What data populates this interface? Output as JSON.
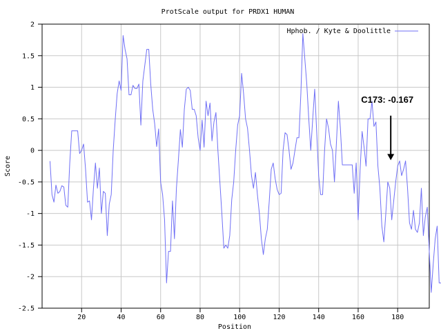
{
  "chart_data": {
    "type": "line",
    "title": "ProtScale output for PRDX1 HUMAN",
    "xlabel": "Position",
    "ylabel": "Score",
    "xlim": [
      0,
      196
    ],
    "ylim": [
      -2.5,
      2
    ],
    "xticks": [
      20,
      40,
      60,
      80,
      100,
      120,
      140,
      160,
      180
    ],
    "yticks": [
      -2.5,
      -2,
      -1.5,
      -1,
      -0.5,
      0,
      0.5,
      1,
      1.5,
      2
    ],
    "xtick_labels": [
      "20",
      "40",
      "60",
      "80",
      "100",
      "120",
      "140",
      "160",
      "180"
    ],
    "ytick_labels": [
      "-2.5",
      "-2",
      "-1.5",
      "-1",
      "-0.5",
      "0",
      "0.5",
      "1",
      "1.5",
      "2"
    ],
    "grid": true,
    "legend_position": "top-right",
    "series": [
      {
        "name": "Hphob. / Kyte & Doolittle",
        "color": "#6f6ff5",
        "x_start": 4,
        "values": [
          -0.17,
          -0.7,
          -0.82,
          -0.55,
          -0.68,
          -0.65,
          -0.56,
          -0.58,
          -0.87,
          -0.9,
          -0.2,
          0.31,
          0.31,
          0.31,
          0.31,
          -0.05,
          0.0,
          0.1,
          -0.3,
          -0.82,
          -0.8,
          -1.1,
          -0.6,
          -0.2,
          -0.6,
          -0.28,
          -1.0,
          -0.65,
          -0.68,
          -1.35,
          -0.85,
          -0.7,
          0.0,
          0.48,
          0.9,
          1.1,
          0.95,
          1.82,
          1.6,
          1.45,
          0.88,
          0.88,
          1.03,
          0.98,
          0.98,
          1.05,
          0.4,
          1.1,
          1.35,
          1.6,
          1.6,
          1.05,
          0.65,
          0.42,
          0.06,
          0.34,
          -0.5,
          -0.7,
          -1.1,
          -2.1,
          -1.6,
          -1.6,
          -0.8,
          -1.4,
          -0.6,
          -0.15,
          0.33,
          0.05,
          0.65,
          0.97,
          1.0,
          0.95,
          0.65,
          0.65,
          0.55,
          0.2,
          0.0,
          0.48,
          0.05,
          0.78,
          0.55,
          0.75,
          0.15,
          0.45,
          0.6,
          0.0,
          -0.5,
          -1.0,
          -1.55,
          -1.5,
          -1.55,
          -1.35,
          -0.78,
          -0.5,
          0.0,
          0.4,
          0.55,
          1.22,
          0.9,
          0.5,
          0.35,
          0.0,
          -0.4,
          -0.6,
          -0.35,
          -0.7,
          -1.0,
          -1.4,
          -1.65,
          -1.4,
          -1.25,
          -0.8,
          -0.3,
          -0.2,
          -0.45,
          -0.62,
          -0.7,
          -0.68,
          0.0,
          0.28,
          0.25,
          0.0,
          -0.3,
          -0.2,
          0.0,
          0.2,
          0.2,
          0.9,
          1.85,
          1.45,
          1.05,
          0.5,
          0.0,
          0.5,
          0.97,
          0.3,
          -0.4,
          -0.7,
          -0.7,
          0.0,
          0.5,
          0.35,
          0.1,
          0.0,
          -0.5,
          0.12,
          0.78,
          0.35,
          -0.23,
          -0.23,
          -0.23,
          -0.23,
          -0.23,
          -0.23,
          -0.68,
          -0.2,
          -1.1,
          -0.3,
          0.3,
          0.05,
          -0.25,
          0.5,
          0.5,
          0.78,
          0.38,
          0.45,
          -0.25,
          -0.6,
          -1.2,
          -1.45,
          -1.0,
          -0.5,
          -0.6,
          -1.1,
          -0.8,
          -0.5,
          -0.25,
          -0.167,
          -0.4,
          -0.3,
          -0.167,
          -0.6,
          -1.15,
          -1.25,
          -0.95,
          -1.25,
          -1.3,
          -1.15,
          -0.6,
          -1.35,
          -1.05,
          -0.9,
          -1.6,
          -2.25,
          -1.8,
          -1.4,
          -1.2,
          -2.1,
          -2.1,
          -2.1,
          -2.1,
          -2.1
        ]
      }
    ],
    "annotations": [
      {
        "label": "C173: -0.167",
        "x": 176.5,
        "y": -0.167
      }
    ]
  }
}
